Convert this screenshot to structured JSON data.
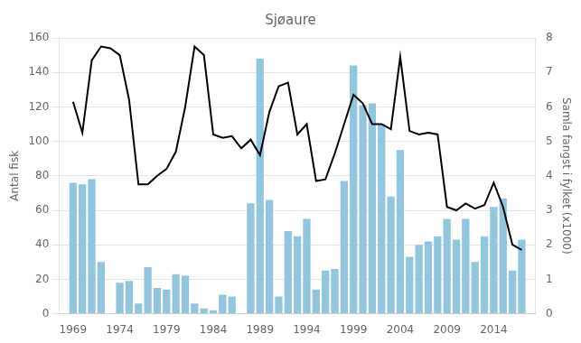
{
  "chart_data": {
    "type": "bar",
    "title": "Sjøaure",
    "x": [
      1969,
      1970,
      1971,
      1972,
      1973,
      1974,
      1975,
      1976,
      1977,
      1978,
      1979,
      1980,
      1981,
      1982,
      1983,
      1984,
      1985,
      1986,
      1987,
      1988,
      1989,
      1990,
      1991,
      1992,
      1993,
      1994,
      1995,
      1996,
      1997,
      1998,
      1999,
      2000,
      2001,
      2002,
      2003,
      2004,
      2005,
      2006,
      2007,
      2008,
      2009,
      2010,
      2011,
      2012,
      2013,
      2014,
      2015,
      2016,
      2017
    ],
    "series": [
      {
        "type": "bar",
        "color": "#92C5DE",
        "values": [
          76,
          75,
          78,
          30,
          0,
          18,
          19,
          6,
          27,
          15,
          14,
          23,
          22,
          6,
          3,
          2,
          11,
          10,
          0,
          64,
          148,
          66,
          10,
          48,
          45,
          55,
          14,
          25,
          26,
          77,
          144,
          121,
          122,
          110,
          68,
          95,
          33,
          40,
          42,
          45,
          55,
          43,
          55,
          30,
          45,
          62,
          67,
          25,
          43
        ]
      },
      {
        "type": "line",
        "color": "#000000",
        "axis": "y2",
        "values": [
          6.15,
          5.25,
          7.35,
          7.75,
          7.7,
          7.5,
          6.2,
          3.75,
          3.75,
          4.0,
          4.2,
          4.7,
          6.0,
          7.75,
          7.5,
          5.2,
          5.1,
          5.15,
          4.8,
          5.05,
          4.6,
          5.85,
          6.6,
          6.7,
          5.2,
          5.5,
          3.85,
          3.9,
          4.65,
          5.5,
          6.35,
          6.1,
          5.5,
          5.5,
          5.35,
          7.45,
          5.3,
          5.2,
          5.25,
          5.2,
          3.1,
          3.0,
          3.2,
          3.05,
          3.15,
          3.8,
          3.1,
          2.0,
          1.85
        ]
      }
    ],
    "ylabel": "Antal fisk",
    "y2label": "Samla fangst i fylket (x1000)",
    "xlim": [
      1967.5,
      2018.5
    ],
    "xticks": [
      1969,
      1974,
      1979,
      1984,
      1989,
      1994,
      1999,
      2004,
      2009,
      2014
    ],
    "ylim": [
      0,
      160
    ],
    "yticks": [
      0,
      20,
      40,
      60,
      80,
      100,
      120,
      140,
      160
    ],
    "y2lim": [
      0,
      8
    ],
    "y2ticks": [
      0,
      1,
      2,
      3,
      4,
      5,
      6,
      7,
      8
    ],
    "grid": "y"
  }
}
